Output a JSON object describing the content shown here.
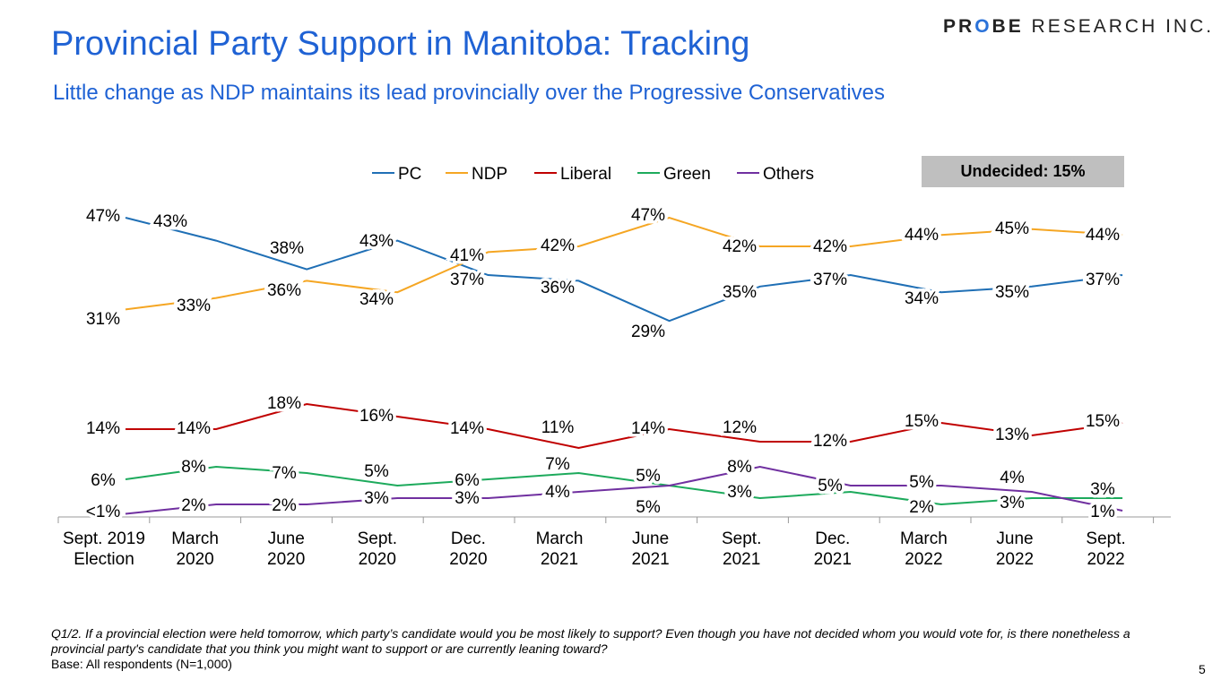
{
  "title": "Provincial Party Support in Manitoba: Tracking",
  "subtitle": "Little change as NDP maintains its lead provincially over the Progressive Conservatives",
  "logo": "PROBE RESEARCH INC.",
  "undecided": "Undecided: 15%",
  "footnote": "Q1/2. If a provincial election were held tomorrow, which party’s candidate would you be most likely to support? Even though you have not decided whom you would vote for, is there nonetheless a provincial party's candidate that you think you might want to support or are currently leaning toward?",
  "base": "Base: All respondents (N=1,000)",
  "page_number": "5",
  "chart_data": {
    "type": "line",
    "categories": [
      [
        "Sept. 2019",
        "Election"
      ],
      [
        "March",
        "2020"
      ],
      [
        "June",
        "2020"
      ],
      [
        "Sept.",
        "2020"
      ],
      [
        "Dec.",
        "2020"
      ],
      [
        "March",
        "2021"
      ],
      [
        "June",
        "2021"
      ],
      [
        "Sept.",
        "2021"
      ],
      [
        "Dec.",
        "2021"
      ],
      [
        "March",
        "2022"
      ],
      [
        "June",
        "2022"
      ],
      [
        "Sept.",
        "2022"
      ]
    ],
    "unit": "%",
    "legend_position": "top",
    "grid": false,
    "series": [
      {
        "name": "PC",
        "color": "#1f6fb5",
        "values": [
          47,
          43,
          38,
          43,
          37,
          36,
          29,
          35,
          37,
          34,
          35,
          37
        ]
      },
      {
        "name": "NDP",
        "color": "#f5a623",
        "values": [
          31,
          33,
          36,
          34,
          41,
          42,
          47,
          42,
          42,
          44,
          45,
          44
        ]
      },
      {
        "name": "Liberal",
        "color": "#c00000",
        "values": [
          14,
          14,
          18,
          16,
          14,
          11,
          14,
          12,
          12,
          15,
          13,
          15
        ]
      },
      {
        "name": "Green",
        "color": "#1daa5c",
        "values": [
          6,
          8,
          7,
          5,
          6,
          7,
          5,
          3,
          4,
          2,
          3,
          3
        ]
      },
      {
        "name": "Others",
        "color": "#7030a0",
        "values": [
          "<1",
          2,
          2,
          3,
          3,
          4,
          5,
          8,
          5,
          5,
          4,
          1
        ]
      }
    ]
  }
}
